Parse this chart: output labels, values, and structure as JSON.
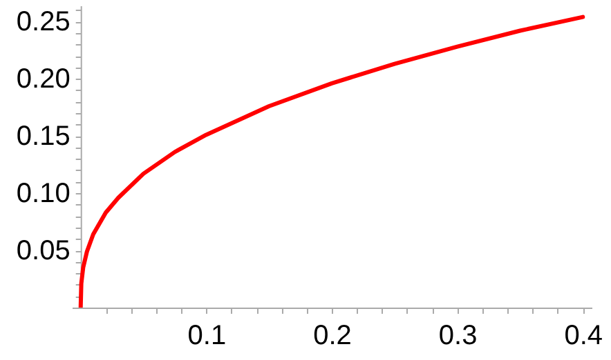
{
  "chart_data": {
    "type": "line",
    "x": [
      0,
      0.0005,
      0.002,
      0.005,
      0.01,
      0.02,
      0.03,
      0.05,
      0.075,
      0.1,
      0.15,
      0.2,
      0.25,
      0.3,
      0.35,
      0.4
    ],
    "series": [
      {
        "color": "#ff0000",
        "values": [
          0,
          0.021,
          0.035,
          0.049,
          0.064,
          0.083,
          0.096,
          0.117,
          0.136,
          0.151,
          0.176,
          0.196,
          0.213,
          0.228,
          0.242,
          0.254
        ]
      }
    ],
    "xlim": [
      -0.007,
      0.407
    ],
    "ylim": [
      0,
      0.264
    ],
    "xticks": [
      {
        "value": 0.02,
        "label": null
      },
      {
        "value": 0.04,
        "label": null
      },
      {
        "value": 0.06,
        "label": null
      },
      {
        "value": 0.08,
        "label": null
      },
      0.1,
      {
        "value": 0.12,
        "label": null
      },
      {
        "value": 0.14,
        "label": null
      },
      {
        "value": 0.16,
        "label": null
      },
      {
        "value": 0.18,
        "label": null
      },
      0.2,
      {
        "value": 0.22,
        "label": null
      },
      {
        "value": 0.24,
        "label": null
      },
      {
        "value": 0.26,
        "label": null
      },
      {
        "value": 0.28,
        "label": null
      },
      0.3,
      {
        "value": 0.32,
        "label": null
      },
      {
        "value": 0.34,
        "label": null
      },
      {
        "value": 0.36,
        "label": null
      },
      {
        "value": 0.38,
        "label": null
      },
      0.4
    ],
    "yticks": [
      {
        "value": 0.01,
        "label": null
      },
      {
        "value": 0.02,
        "label": null
      },
      {
        "value": 0.03,
        "label": null
      },
      {
        "value": 0.04,
        "label": null
      },
      {
        "value": 0.05,
        "label": "0.05"
      },
      {
        "value": 0.06,
        "label": null
      },
      {
        "value": 0.07,
        "label": null
      },
      {
        "value": 0.08,
        "label": null
      },
      {
        "value": 0.09,
        "label": null
      },
      {
        "value": 0.1,
        "label": "0.10"
      },
      {
        "value": 0.11,
        "label": null
      },
      {
        "value": 0.12,
        "label": null
      },
      {
        "value": 0.13,
        "label": null
      },
      {
        "value": 0.14,
        "label": null
      },
      {
        "value": 0.15,
        "label": "0.15"
      },
      {
        "value": 0.16,
        "label": null
      },
      {
        "value": 0.17,
        "label": null
      },
      {
        "value": 0.18,
        "label": null
      },
      {
        "value": 0.19,
        "label": null
      },
      {
        "value": 0.2,
        "label": "0.20"
      },
      {
        "value": 0.21,
        "label": null
      },
      {
        "value": 0.22,
        "label": null
      },
      {
        "value": 0.23,
        "label": null
      },
      {
        "value": 0.24,
        "label": null
      },
      {
        "value": 0.25,
        "label": "0.25"
      },
      {
        "value": 0.26,
        "label": null
      }
    ],
    "grid": false,
    "marker": "none",
    "line_style": "solid"
  }
}
